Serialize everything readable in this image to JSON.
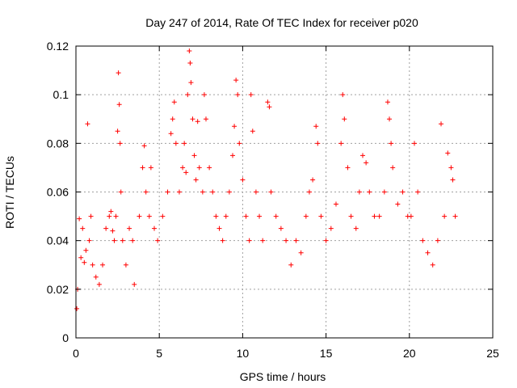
{
  "chart_data": {
    "type": "scatter",
    "title": "Day 247 of 2014, Rate Of TEC Index for receiver p020",
    "xlabel": "GPS time / hours",
    "ylabel": "ROTI / TECUs",
    "xlim": [
      0,
      25
    ],
    "ylim": [
      0,
      0.12
    ],
    "xticks": [
      0,
      5,
      10,
      15,
      20,
      25
    ],
    "yticks": [
      0,
      0.02,
      0.04,
      0.06,
      0.08,
      0.1,
      0.12
    ],
    "ytick_labels": [
      "0",
      "0.02",
      "0.04",
      "0.06",
      "0.08",
      "0.1",
      "0.12"
    ],
    "xtick_labels": [
      "0",
      "5",
      "10",
      "15",
      "20",
      "25"
    ],
    "grid": true,
    "marker": "plus",
    "color": "#ff0000",
    "series": [
      {
        "values": [
          [
            0.05,
            0.012
          ],
          [
            0.1,
            0.02
          ],
          [
            0.2,
            0.049
          ],
          [
            0.3,
            0.033
          ],
          [
            0.4,
            0.045
          ],
          [
            0.5,
            0.031
          ],
          [
            0.6,
            0.036
          ],
          [
            0.7,
            0.088
          ],
          [
            0.8,
            0.04
          ],
          [
            0.9,
            0.05
          ],
          [
            1.0,
            0.03
          ],
          [
            1.2,
            0.025
          ],
          [
            1.4,
            0.022
          ],
          [
            1.6,
            0.03
          ],
          [
            1.8,
            0.045
          ],
          [
            2.0,
            0.05
          ],
          [
            2.1,
            0.052
          ],
          [
            2.2,
            0.044
          ],
          [
            2.3,
            0.04
          ],
          [
            2.4,
            0.05
          ],
          [
            2.5,
            0.085
          ],
          [
            2.55,
            0.109
          ],
          [
            2.6,
            0.096
          ],
          [
            2.65,
            0.08
          ],
          [
            2.7,
            0.06
          ],
          [
            2.8,
            0.04
          ],
          [
            3.0,
            0.03
          ],
          [
            3.2,
            0.045
          ],
          [
            3.4,
            0.04
          ],
          [
            3.5,
            0.022
          ],
          [
            3.8,
            0.05
          ],
          [
            4.0,
            0.07
          ],
          [
            4.1,
            0.079
          ],
          [
            4.2,
            0.06
          ],
          [
            4.4,
            0.05
          ],
          [
            4.5,
            0.07
          ],
          [
            4.7,
            0.045
          ],
          [
            4.9,
            0.04
          ],
          [
            5.2,
            0.05
          ],
          [
            5.5,
            0.06
          ],
          [
            5.7,
            0.084
          ],
          [
            5.8,
            0.09
          ],
          [
            5.9,
            0.097
          ],
          [
            6.0,
            0.08
          ],
          [
            6.2,
            0.06
          ],
          [
            6.4,
            0.07
          ],
          [
            6.5,
            0.08
          ],
          [
            6.6,
            0.068
          ],
          [
            6.7,
            0.1
          ],
          [
            6.8,
            0.118
          ],
          [
            6.85,
            0.113
          ],
          [
            6.9,
            0.105
          ],
          [
            7.0,
            0.09
          ],
          [
            7.1,
            0.075
          ],
          [
            7.2,
            0.065
          ],
          [
            7.3,
            0.089
          ],
          [
            7.4,
            0.07
          ],
          [
            7.6,
            0.06
          ],
          [
            7.7,
            0.1
          ],
          [
            7.8,
            0.09
          ],
          [
            8.0,
            0.07
          ],
          [
            8.2,
            0.06
          ],
          [
            8.4,
            0.05
          ],
          [
            8.6,
            0.045
          ],
          [
            8.8,
            0.04
          ],
          [
            9.0,
            0.05
          ],
          [
            9.2,
            0.06
          ],
          [
            9.4,
            0.075
          ],
          [
            9.5,
            0.087
          ],
          [
            9.6,
            0.106
          ],
          [
            9.7,
            0.1
          ],
          [
            9.8,
            0.08
          ],
          [
            10.0,
            0.065
          ],
          [
            10.2,
            0.05
          ],
          [
            10.4,
            0.04
          ],
          [
            10.5,
            0.1
          ],
          [
            10.6,
            0.085
          ],
          [
            10.8,
            0.06
          ],
          [
            11.0,
            0.05
          ],
          [
            11.2,
            0.04
          ],
          [
            11.5,
            0.097
          ],
          [
            11.6,
            0.095
          ],
          [
            11.7,
            0.06
          ],
          [
            12.0,
            0.05
          ],
          [
            12.3,
            0.045
          ],
          [
            12.6,
            0.04
          ],
          [
            12.9,
            0.03
          ],
          [
            13.2,
            0.04
          ],
          [
            13.5,
            0.035
          ],
          [
            13.8,
            0.05
          ],
          [
            14.0,
            0.06
          ],
          [
            14.2,
            0.065
          ],
          [
            14.4,
            0.087
          ],
          [
            14.5,
            0.08
          ],
          [
            14.7,
            0.05
          ],
          [
            15.0,
            0.04
          ],
          [
            15.3,
            0.045
          ],
          [
            15.6,
            0.055
          ],
          [
            15.9,
            0.08
          ],
          [
            16.0,
            0.1
          ],
          [
            16.1,
            0.09
          ],
          [
            16.3,
            0.07
          ],
          [
            16.5,
            0.05
          ],
          [
            16.8,
            0.045
          ],
          [
            17.0,
            0.06
          ],
          [
            17.2,
            0.075
          ],
          [
            17.4,
            0.072
          ],
          [
            17.6,
            0.06
          ],
          [
            17.9,
            0.05
          ],
          [
            18.2,
            0.05
          ],
          [
            18.5,
            0.06
          ],
          [
            18.7,
            0.097
          ],
          [
            18.8,
            0.09
          ],
          [
            18.9,
            0.08
          ],
          [
            19.0,
            0.07
          ],
          [
            19.3,
            0.055
          ],
          [
            19.6,
            0.06
          ],
          [
            19.9,
            0.05
          ],
          [
            20.1,
            0.05
          ],
          [
            20.3,
            0.08
          ],
          [
            20.5,
            0.06
          ],
          [
            20.8,
            0.04
          ],
          [
            21.1,
            0.035
          ],
          [
            21.4,
            0.03
          ],
          [
            21.7,
            0.04
          ],
          [
            21.9,
            0.088
          ],
          [
            22.1,
            0.05
          ],
          [
            22.3,
            0.076
          ],
          [
            22.5,
            0.07
          ],
          [
            22.6,
            0.065
          ],
          [
            22.75,
            0.05
          ]
        ]
      }
    ]
  }
}
